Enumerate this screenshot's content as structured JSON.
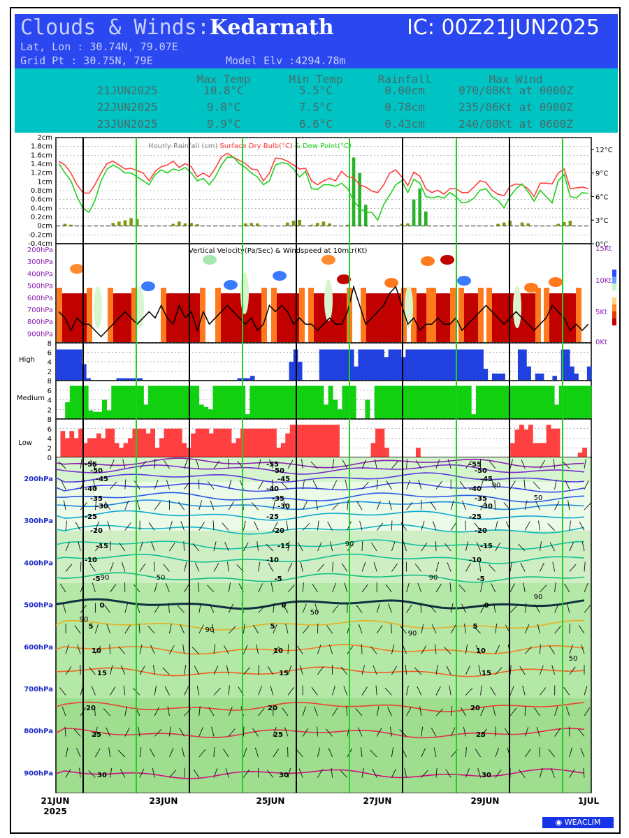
{
  "header": {
    "title_prefix": "Clouds & Winds:",
    "location": "Kedarnath",
    "ic": "IC: 00Z21JUN2025",
    "latlon": "Lat, Lon : 30.74N, 79.07E",
    "gridpt": "Grid Pt  : 30.75N, 79E",
    "model_elv": "Model Elv :4294.78m"
  },
  "summary": {
    "columns": [
      "Max Temp",
      "Min Temp",
      "Rainfall",
      "Max Wind"
    ],
    "rows": [
      {
        "date": "21JUN2025",
        "max_temp": "10.8°C",
        "min_temp": "5.5°C",
        "rainfall": "0.00cm",
        "max_wind": "070/08Kt at 0000Z"
      },
      {
        "date": "22JUN2025",
        "max_temp": "9.8°C",
        "min_temp": "7.5°C",
        "rainfall": "0.78cm",
        "max_wind": "235/06Kt at 0900Z"
      },
      {
        "date": "23JUN2025",
        "max_temp": "9.9°C",
        "min_temp": "6.6°C",
        "rainfall": "0.43cm",
        "max_wind": "240/08Kt at 0600Z"
      }
    ]
  },
  "colors": {
    "header_blue": "#2a47f0",
    "header_cyan": "#00c3c3",
    "temp_red": "#ff4040",
    "dew_green": "#20d020",
    "rain_bar": "#2ab02a",
    "high_blue": "#2040e0",
    "medium_green": "#10d010",
    "low_red": "#ff4040",
    "day_line_green": "#20d020"
  },
  "logo": "WEACLIM",
  "chart_data": [
    {
      "type": "line",
      "title_parts": [
        "Hourly Rainfall (cm)",
        "Surface Dry Bulb(°C)",
        "& Dew Point(°C)"
      ],
      "left_ticks": [
        "2cm",
        "1.8cm",
        "1.6cm",
        "1.4cm",
        "1.2cm",
        "1cm",
        "0.8cm",
        "0.6cm",
        "0.4cm",
        "0.2cm",
        "0cm",
        "-0.2cm",
        "-0.4cm"
      ],
      "right_ticks": [
        "12°C",
        "9°C",
        "6°C",
        "3°C",
        "0°C"
      ],
      "ylim_rain": [
        -0.4,
        2
      ],
      "ylim_temp": [
        0,
        13.5
      ],
      "series": [
        {
          "name": "Surface Dry Bulb(°C)",
          "values": [
            10.5,
            10,
            9,
            7.5,
            6.5,
            6.4,
            7.5,
            9,
            10.2,
            10.5,
            10,
            9.5,
            9.6,
            9.3,
            9,
            8,
            9.2,
            9.8,
            10,
            10.5,
            9.7,
            10.2,
            9.8,
            8.5,
            9,
            8.5,
            9.6,
            11,
            11.5,
            11,
            10.6,
            10.2,
            9.5,
            9.4,
            8,
            9,
            10.9,
            10.8,
            10.5,
            10,
            9.5,
            9.6,
            8,
            7.5,
            8,
            8.3,
            8,
            9.2,
            8.5,
            8.4,
            7.5,
            7.2,
            6.7,
            6.5,
            7.5,
            9,
            9.4,
            8.5,
            7.4,
            9.1,
            8.6,
            7,
            6.5,
            6.8,
            6.3,
            7,
            7,
            6.5,
            6.5,
            7.2,
            8,
            7.8,
            6.8,
            6.3,
            6.1,
            7.3,
            7.6,
            7.5,
            7,
            6,
            7.7,
            7.7,
            7.6,
            9,
            9.5,
            7,
            7.1,
            7.2,
            7
          ]
        },
        {
          "name": "Dew Point(°C)",
          "values": [
            10.2,
            9,
            8,
            6,
            4.5,
            4,
            5.5,
            8,
            9.5,
            10,
            9.6,
            9,
            9,
            8.5,
            8,
            7.5,
            8.8,
            9.4,
            9,
            9.5,
            9.3,
            9.7,
            9,
            8,
            8.3,
            7.5,
            8.5,
            10,
            11,
            11,
            10.2,
            9.7,
            9,
            8.5,
            7.5,
            8,
            10,
            10.3,
            10.2,
            9.5,
            8.5,
            9.2,
            7,
            6.9,
            7.5,
            7.5,
            7.3,
            7.7,
            7,
            5.5,
            4.5,
            4,
            4,
            3,
            5,
            6.2,
            7.5,
            8,
            6.5,
            8.2,
            7.7,
            6,
            5.8,
            6,
            5.8,
            6.5,
            6,
            5.2,
            5.3,
            5.8,
            6.8,
            7,
            6,
            5.5,
            4.6,
            6,
            7,
            7.6,
            6.6,
            5.4,
            6.8,
            6,
            5.2,
            8,
            8.8,
            6,
            5.8,
            6.5,
            6.4
          ]
        },
        {
          "name": "Hourly Rainfall (cm)",
          "values": [
            0,
            0.05,
            0.03,
            0,
            0,
            0,
            0,
            0,
            0,
            0.07,
            0.1,
            0.13,
            0.18,
            0.16,
            0,
            0,
            0,
            0,
            0,
            0.05,
            0.1,
            0.06,
            0.07,
            0.04,
            0,
            0,
            0,
            0,
            0,
            0,
            0,
            0.06,
            0.07,
            0.06,
            0,
            0,
            0,
            0,
            0.08,
            0.12,
            0.14,
            0,
            0.03,
            0.07,
            0.1,
            0.06,
            0,
            0,
            0.03,
            1.55,
            1.2,
            0.48,
            0,
            0,
            0,
            0,
            0,
            0.05,
            0.06,
            0.6,
            0.85,
            0.33,
            0,
            0,
            0,
            0,
            0,
            0,
            0,
            0,
            0,
            0,
            0,
            0.05,
            0.08,
            0.12,
            0,
            0.08,
            0.06,
            0,
            0,
            0,
            0,
            0.05,
            0.09,
            0.12,
            0,
            0,
            0
          ]
        }
      ]
    },
    {
      "type": "heatmap",
      "title": "Vertical Velocity(Pa/Sec) & Windspeed at 10mtr(Kt)",
      "left_ticks": [
        "200hPa",
        "300hPa",
        "400hPa",
        "500hPa",
        "600hPa",
        "700hPa",
        "800hPa",
        "900hPa"
      ],
      "right_ticks": [
        "15Kt",
        "10Kt",
        "5Kt",
        "0Kt"
      ],
      "ylim_wind": [
        0,
        15
      ],
      "series": [
        {
          "name": "Windspeed at 10mtr(Kt)",
          "values": [
            5,
            4,
            2,
            4,
            3,
            3,
            2,
            1,
            2,
            3,
            4,
            5,
            4,
            3,
            4,
            5,
            4,
            6,
            4,
            3,
            6,
            4,
            5,
            2,
            5,
            3,
            4,
            5,
            6,
            5,
            4,
            3,
            4,
            2,
            3,
            6,
            5,
            6,
            5,
            3,
            4,
            3,
            3,
            2,
            3,
            4,
            3,
            3,
            5,
            9,
            6,
            3,
            4,
            5,
            6,
            8,
            9,
            6,
            3,
            4,
            2,
            3,
            3,
            4,
            3,
            3,
            4,
            2,
            3,
            4,
            5,
            6,
            5,
            4,
            3,
            4,
            5,
            4,
            3,
            2,
            3,
            4,
            6,
            5,
            4,
            2,
            3,
            2,
            3
          ]
        }
      ]
    },
    {
      "type": "bar",
      "name": "High",
      "yticks": [
        "8",
        "6",
        "4",
        "2"
      ],
      "ylim": [
        0,
        8
      ],
      "values": [
        6.6,
        6.6,
        6.6,
        6.6,
        6.6,
        6.6,
        3.5,
        0.5,
        0,
        0,
        0,
        0,
        0,
        0,
        0.5,
        0.5,
        0.5,
        0.5,
        0.5,
        0.5,
        0,
        0,
        0,
        0,
        0,
        0,
        0,
        0,
        0,
        0,
        0,
        0,
        0,
        0,
        0,
        0,
        0,
        0,
        0,
        0,
        0,
        0,
        0.5,
        0.5,
        0.5,
        1,
        0,
        0,
        0,
        0,
        0,
        0,
        0,
        0,
        4,
        6.6,
        4,
        0,
        0,
        0,
        0,
        6.6,
        6.6,
        6.6,
        6.6,
        6.6,
        6.6,
        6.6,
        6.6,
        3,
        6.6,
        6.6,
        6.6,
        6.6,
        6.6,
        6.6,
        5,
        6.6,
        6.6,
        6.6,
        5,
        6.6,
        6.6,
        6.6,
        6.6,
        6.6,
        6.6,
        6.6,
        6.6,
        6.6,
        6.6,
        6.6,
        6.6,
        6.6,
        6.6,
        6.6,
        6.6,
        6.6,
        6.6,
        2.5,
        0,
        1.5,
        1.5,
        1.5,
        0,
        0,
        0,
        6.6,
        6.6,
        3,
        0,
        1.5,
        1.5,
        0,
        0,
        1,
        0,
        6.6,
        6.6,
        3,
        1.5,
        0,
        0,
        3
      ]
    },
    {
      "type": "bar",
      "name": "Medium",
      "yticks": [
        "8",
        "6",
        "4",
        "2"
      ],
      "ylim": [
        0,
        8
      ],
      "values": [
        0,
        0,
        3.5,
        6.9,
        6.9,
        6.9,
        6.9,
        1.8,
        1.5,
        1.5,
        4,
        1.8,
        6.9,
        6.9,
        6.9,
        6.9,
        6.9,
        6.9,
        6.9,
        3,
        6.9,
        6.9,
        6.9,
        6.9,
        6.9,
        6.9,
        6.9,
        6.9,
        6.9,
        6.9,
        6.9,
        3,
        2.5,
        2,
        6.9,
        6.9,
        6.9,
        6.9,
        6.9,
        6.9,
        6.9,
        1,
        6.9,
        6.9,
        6.9,
        6.9,
        6.9,
        6.9,
        6.9,
        6.9,
        6.9,
        6.9,
        6.9,
        6.9,
        6.9,
        6.9,
        6.9,
        6.9,
        3,
        6.9,
        4,
        2,
        6.9,
        6.9,
        6.9,
        0,
        0,
        4,
        0,
        6.9,
        6.9,
        6.9,
        6.9,
        6.9,
        6.9,
        6.9,
        6.9,
        6.9,
        6.9,
        6.9,
        6.9,
        6.9,
        6.9,
        6.9,
        6.9,
        6.9,
        6.9,
        6.9,
        6.9,
        6.9,
        1,
        6.9,
        6.9,
        6.9,
        6.9,
        6.9,
        6.9,
        6.9,
        6.9,
        6.9,
        6.9,
        6.9,
        6.9,
        6.9,
        6.9,
        6.9,
        6.9,
        6.9,
        3,
        6.9,
        6.9,
        6.9,
        6.9,
        6.9,
        6.9,
        6.9
      ]
    },
    {
      "type": "bar",
      "name": "Low",
      "yticks": [
        "8",
        "6",
        "4",
        "2",
        "0"
      ],
      "ylim": [
        0,
        8
      ],
      "values": [
        0,
        5.5,
        4,
        5.5,
        4,
        6,
        3,
        4,
        4,
        5,
        4,
        6,
        6,
        3,
        2,
        3,
        4,
        6,
        6,
        6,
        5,
        6,
        2,
        4,
        6,
        6,
        6,
        6,
        3,
        2,
        5,
        6,
        6,
        6,
        5,
        6,
        6,
        6,
        6,
        3,
        4,
        6,
        6,
        6,
        6,
        6,
        6,
        6,
        6,
        2,
        3,
        5,
        6.8,
        6.8,
        6.8,
        6.8,
        6.8,
        6.8,
        6.8,
        6.8,
        6.8,
        6.8,
        6.8,
        0,
        0,
        0,
        0,
        0,
        0,
        0,
        3,
        6,
        6,
        2,
        0,
        0,
        0,
        0,
        0,
        0,
        2,
        0,
        0,
        0,
        0,
        0,
        0,
        0,
        0,
        0,
        0,
        0,
        0,
        0,
        0,
        0,
        0,
        0,
        0,
        0,
        0,
        3,
        5.8,
        6.8,
        5.8,
        6.8,
        3,
        3,
        3,
        6.8,
        6,
        6,
        0,
        0,
        0,
        0,
        1,
        2,
        0
      ]
    },
    {
      "type": "heatmap",
      "title": "",
      "left_ticks": [
        "200hPa",
        "300hPa",
        "400hPa",
        "500hPa",
        "600hPa",
        "700hPa",
        "800hPa",
        "900hPa"
      ],
      "x_ticks": [
        "21JUN",
        "23JUN",
        "25JUN",
        "27JUN",
        "29JUN",
        "1JUL"
      ],
      "x_year": "2025",
      "temp_labels": [
        "-55",
        "-50",
        "-45",
        "-40",
        "-35",
        "-30",
        "-25",
        "-20",
        "-15",
        "-10",
        "-5",
        "0",
        "5",
        "10",
        "15",
        "20",
        "25",
        "30"
      ],
      "rh_labels": [
        "50",
        "70",
        "90"
      ]
    }
  ]
}
